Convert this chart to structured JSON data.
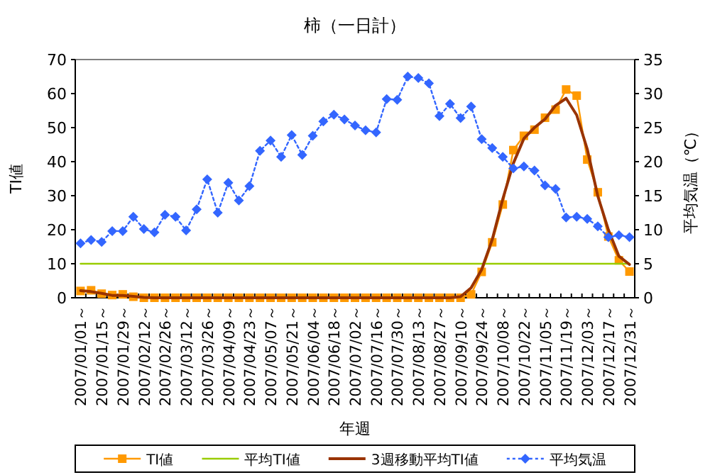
{
  "chart_data": {
    "type": "line",
    "title": "柿（一日計）",
    "xlabel": "年週",
    "ylabel": "TI値",
    "y2label": "平均気温（℃）",
    "categories": [
      "2007/01/01～",
      null,
      "2007/01/15～",
      null,
      "2007/01/29～",
      null,
      "2007/02/12～",
      null,
      "2007/02/26～",
      null,
      "2007/03/12～",
      null,
      "2007/03/26～",
      null,
      "2007/04/09～",
      null,
      "2007/04/23～",
      null,
      "2007/05/07～",
      null,
      "2007/05/21～",
      null,
      "2007/06/04～",
      null,
      "2007/06/18～",
      null,
      "2007/07/02～",
      null,
      "2007/07/16～",
      null,
      "2007/07/30～",
      null,
      "2007/08/13～",
      null,
      "2007/08/27～",
      null,
      "2007/09/10～",
      null,
      "2007/09/24～",
      null,
      "2007/10/08～",
      null,
      "2007/10/22～",
      null,
      "2007/11/05～",
      null,
      "2007/11/19～",
      null,
      "2007/12/03～",
      null,
      "2007/12/17～",
      null,
      "2007/12/31～"
    ],
    "ylim": [
      0,
      70
    ],
    "yticks": [
      0,
      10,
      20,
      30,
      40,
      50,
      60,
      70
    ],
    "y2lim": [
      0,
      35
    ],
    "y2ticks": [
      0,
      5,
      10,
      15,
      20,
      25,
      30,
      35
    ],
    "grid": false,
    "legend": "bottom",
    "series": [
      {
        "name": "TI値",
        "color": "#ff9900",
        "marker": "square",
        "line_style": "solid",
        "values": [
          2,
          2.2,
          1.2,
          0.8,
          1,
          0.3,
          0,
          0,
          0,
          0,
          0,
          0,
          0,
          0,
          0,
          0,
          0,
          0,
          0,
          0,
          0,
          0,
          0,
          0,
          0,
          0,
          0,
          0,
          0,
          0,
          0,
          0,
          0,
          0,
          0,
          0,
          0,
          1,
          7.6,
          16.3,
          27.4,
          43.4,
          47.6,
          49.4,
          52.9,
          55.3,
          61.2,
          59.4,
          40.6,
          31,
          18,
          11,
          7.7
        ]
      },
      {
        "name": "平均TI値",
        "color": "#99cc00",
        "marker": "none",
        "line_style": "solid",
        "values": [
          10,
          10,
          10,
          10,
          10,
          10,
          10,
          10,
          10,
          10,
          10,
          10,
          10,
          10,
          10,
          10,
          10,
          10,
          10,
          10,
          10,
          10,
          10,
          10,
          10,
          10,
          10,
          10,
          10,
          10,
          10,
          10,
          10,
          10,
          10,
          10,
          10,
          10,
          10,
          10,
          10,
          10,
          10,
          10,
          10,
          10,
          10,
          10,
          10,
          10,
          10,
          10,
          10
        ]
      },
      {
        "name": "3週移動平均TI値",
        "color": "#993300",
        "marker": "none",
        "line_style": "solid",
        "values": [
          2.1,
          1.8,
          1.3,
          0.7,
          0.7,
          0.4,
          0.1,
          0,
          0,
          0,
          0,
          0,
          0,
          0,
          0,
          0,
          0,
          0,
          0,
          0,
          0,
          0,
          0,
          0,
          0,
          0,
          0,
          0,
          0,
          0,
          0,
          0,
          0,
          0,
          0,
          0,
          0.3,
          2.9,
          8.3,
          17.1,
          29,
          39.5,
          46.8,
          50,
          52.5,
          56.5,
          58.6,
          53.7,
          43.7,
          29.9,
          20,
          12.2,
          9.8
        ]
      },
      {
        "name": "平均気温",
        "color": "#3366ff",
        "marker": "diamond",
        "line_style": "dotted",
        "axis": "y2",
        "values": [
          8,
          8.5,
          8.2,
          9.8,
          9.8,
          11.9,
          10.1,
          9.6,
          12.2,
          11.9,
          9.9,
          13,
          17.4,
          12.5,
          16.9,
          14.3,
          16.4,
          21.6,
          23.1,
          20.7,
          23.9,
          21,
          23.8,
          25.9,
          26.9,
          26.2,
          25.3,
          24.6,
          24.3,
          29.2,
          29.1,
          32.5,
          32.3,
          31.5,
          26.7,
          28.5,
          26.4,
          28.1,
          23.3,
          22,
          20.7,
          19,
          19.3,
          18.7,
          16.5,
          16,
          11.8,
          11.9,
          11.6,
          10.5,
          8.9,
          9.2,
          8.9
        ]
      }
    ]
  }
}
